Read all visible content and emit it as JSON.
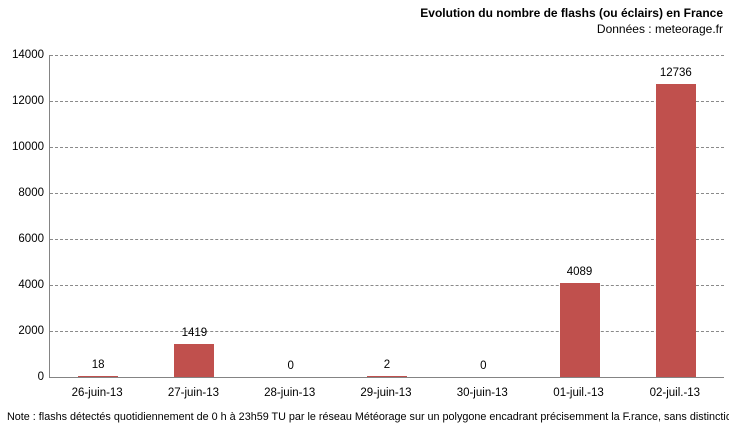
{
  "header": {
    "title": "Evolution du nombre de flashs (ou éclairs) en France",
    "subtitle": "Données : meteorage.fr"
  },
  "note": "Note : flashs détectés quotidiennement de 0 h à 23h59 TU par le réseau Météorage sur un polygone encadrant précisemment la F.rance, sans distinction des arcs",
  "chart_data": {
    "type": "bar",
    "title": "Evolution du nombre de flashs (ou éclairs) en France",
    "subtitle": "Données : meteorage.fr",
    "categories": [
      "26-juin-13",
      "27-juin-13",
      "28-juin-13",
      "29-juin-13",
      "30-juin-13",
      "01-juil.-13",
      "02-juil.-13"
    ],
    "values": [
      18,
      1419,
      0,
      2,
      0,
      4089,
      12736
    ],
    "data_labels": [
      "18",
      "1419",
      "0",
      "2",
      "0",
      "4089",
      "12736"
    ],
    "xlabel": "",
    "ylabel": "",
    "ylim": [
      0,
      14000
    ],
    "ytick_step": 2000,
    "yticks": [
      "0",
      "2000",
      "4000",
      "6000",
      "8000",
      "10000",
      "12000",
      "14000"
    ],
    "bar_color": "#C0504D",
    "axis_color": "#848484",
    "gridline_color": "#8a8a8a",
    "grid": "horizontal-dashed",
    "legend": "none"
  }
}
